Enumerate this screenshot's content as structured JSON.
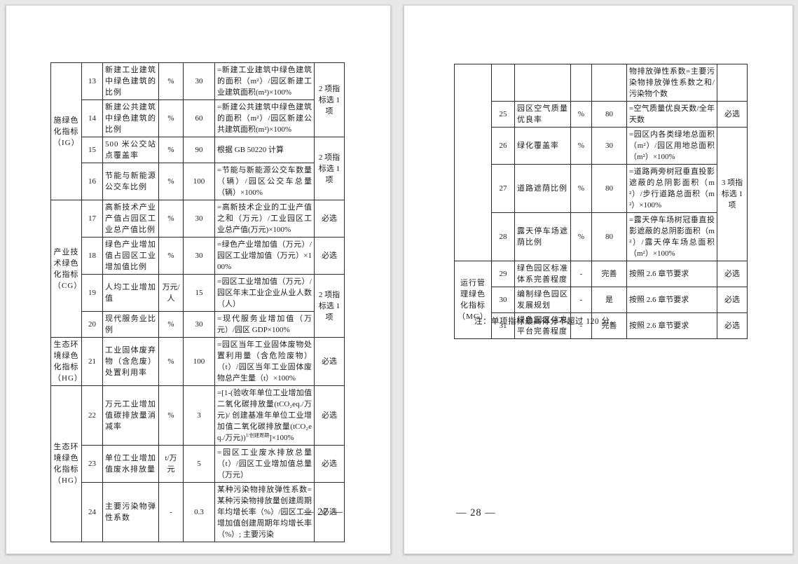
{
  "canvas": {
    "background_color": "#e8e8e8",
    "page_color": "#ffffff",
    "border_color": "#2b2b2b",
    "text_color": "#1c1c1c"
  },
  "page_left": {
    "footer": "— 27 —",
    "table_rows": [
      {
        "cat": {
          "label": "施绿色化指标（IG）",
          "span": 4
        },
        "num": "13",
        "name": "新建工业建筑中绿色建筑的比例",
        "unit": "%",
        "score": "30",
        "formula": "=新建工业建筑中绿色建筑的面积（m²）/园区新建工业建筑面积(m²)×100%",
        "sel": {
          "label": "2 项指标选 1 项",
          "span": 2
        }
      },
      {
        "num": "14",
        "name": "新建公共建筑中绿色建筑的比例",
        "unit": "%",
        "score": "60",
        "formula": "=新建公共建筑中绿色建筑的面积（m²）/园区新建公共建筑面积(m²)×100%"
      },
      {
        "num": "15",
        "name": "500 米公交站点覆盖率",
        "unit": "%",
        "score": "90",
        "formula": "根据 GB 50220 计算",
        "sel": {
          "label": "2 项指标选 1 项",
          "span": 2
        }
      },
      {
        "num": "16",
        "name": "节能与新能源公交车比例",
        "unit": "%",
        "score": "100",
        "formula": "=节能与新能源公交车数量（辆）/园区公交车总量（辆）×100%"
      },
      {
        "cat": {
          "label": "产业技术绿色化指标（CG）",
          "span": 4
        },
        "num": "17",
        "name": "高新技术产业产值占园区工业总产值比例",
        "unit": "%",
        "score": "30",
        "formula": "=高新技术企业的工业产值之和（万元）/工业园区工业总产值(万元)×100%",
        "sel": {
          "label": "必选",
          "span": 1
        }
      },
      {
        "num": "18",
        "name": "绿色产业增加值占园区工业增加值比例",
        "unit": "%",
        "score": "30",
        "formula": "=绿色产业增加值（万元）/园区工业增加值（万元）×100%",
        "sel": {
          "label": "必选",
          "span": 1
        }
      },
      {
        "num": "19",
        "name": "人均工业增加值",
        "unit": "万元/人",
        "score": "15",
        "formula": "=园区工业增加值（万元）/园区年末工业企业从业人数（人）",
        "sel": {
          "label": "2 项指标选 1 项",
          "span": 2
        }
      },
      {
        "num": "20",
        "name": "现代服务业比例",
        "unit": "%",
        "score": "30",
        "formula": "=现代服务业增加值（万元）/园区 GDP×100%"
      },
      {
        "cat": {
          "label": "生态环境绿色化指标（HG）",
          "span": 1
        },
        "num": "21",
        "name": "工业固体废弃物（含危废）处置利用率",
        "unit": "%",
        "score": "100",
        "formula": "=园区当年工业固体废物处置利用量（含危险废物）（t）/园区当年工业固体废物总产生量（t）×100%",
        "sel": {
          "label": "必选",
          "span": 1
        }
      },
      {
        "cat": {
          "label": "生态环境绿色化指标（HG）",
          "span": 3
        },
        "num": "22",
        "name": "万元工业增加值碳排放量消减率",
        "unit": "%",
        "score": "3",
        "formula": [
          {
            "t": "=[1-(验收年单位工业增加值二氧化碳排放量(tCO₂eq./万元)/ 创建基准年单位工业增加值二氧化碳排放量(tCO₂eq./万元))"
          },
          {
            "sup": "1/创建周期"
          },
          {
            "t": "]×100%"
          }
        ],
        "sel": {
          "label": "必选",
          "span": 1
        }
      },
      {
        "num": "23",
        "name": "单位工业增加值废水排放量",
        "unit": "t/万元",
        "score": "5",
        "formula": "=园区工业废水排放总量（t）/园区工业增加值总量（万元）",
        "sel": {
          "label": "必选",
          "span": 1
        }
      },
      {
        "num": "24",
        "name": "主要污染物弹性系数",
        "unit": "-",
        "score": "0.3",
        "formula": "某种污染物排放弹性系数=某种污染物排放量创建周期年均增长率（%）/园区工业增加值创建周期年均增长率（%）; 主要污染",
        "sel": {
          "label": "必选",
          "span": 1
        }
      }
    ]
  },
  "page_right": {
    "note": "注：单项指标最高得分不超过 120 分。",
    "footer": "— 28 —",
    "table_rows": [
      {
        "cat": {
          "label": "",
          "span": 5
        },
        "num": "",
        "name": "",
        "unit": "",
        "score": "",
        "formula": "物排放弹性系数=主要污染物排放弹性系数之和/污染物个数",
        "sel": {
          "label": "",
          "span": 1
        }
      },
      {
        "num": "25",
        "name": "园区空气质量优良率",
        "unit": "%",
        "score": "80",
        "formula": "=空气质量优良天数/全年天数",
        "sel": {
          "label": "必选",
          "span": 1
        }
      },
      {
        "num": "26",
        "name": "绿化覆盖率",
        "unit": "%",
        "score": "30",
        "formula": "=园区内各类绿地总面积（m²）/园区用地总面积（m²）×100%",
        "sel": {
          "label": "3 项指标选 1 项",
          "span": 3
        }
      },
      {
        "num": "27",
        "name": "道路遮荫比例",
        "unit": "%",
        "score": "80",
        "formula": "=道路两旁树冠垂直投影遮蔽的总阴影面积（m²）/步行道路总面积（m²）×100%"
      },
      {
        "num": "28",
        "name": "露天停车场遮荫比例",
        "unit": "%",
        "score": "80",
        "formula": "=露天停车场树冠垂直投影遮蔽的总阴影面积（m²）/露天停车场总面积（m²）×100%"
      },
      {
        "cat": {
          "label": "运行管理绿色化指标（MG）",
          "span": 3
        },
        "num": "29",
        "name": "绿色园区标准体系完善程度",
        "unit": "-",
        "score": "完善",
        "formula": "按照 2.6 章节要求",
        "sel": {
          "label": "必选",
          "span": 1
        }
      },
      {
        "num": "30",
        "name": "编制绿色园区发展规划",
        "unit": "-",
        "score": "是",
        "formula": "按照 2.6 章节要求",
        "sel": {
          "label": "必选",
          "span": 1
        }
      },
      {
        "num": "31",
        "name": "绿色园区信息平台完善程度",
        "unit": "-",
        "score": "完善",
        "formula": "按照 2.6 章节要求",
        "sel": {
          "label": "必选",
          "span": 1
        }
      }
    ]
  }
}
